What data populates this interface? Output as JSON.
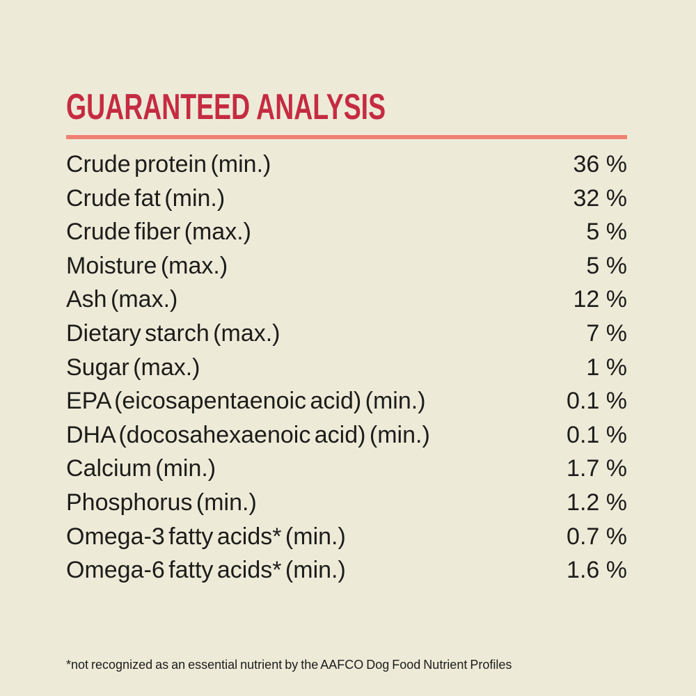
{
  "title": "GUARANTEED ANALYSIS",
  "colors": {
    "background": "#edebd8",
    "text": "#1d1c1a",
    "title_red": "#c52b42",
    "divider_salmon": "#ee8173"
  },
  "rows": [
    {
      "label": "Crude protein (min.)",
      "value": "36 %"
    },
    {
      "label": "Crude fat (min.)",
      "value": "32 %"
    },
    {
      "label": "Crude fiber (max.)",
      "value": "5 %"
    },
    {
      "label": "Moisture (max.)",
      "value": "5 %"
    },
    {
      "label": "Ash (max.)",
      "value": "12 %"
    },
    {
      "label": "Dietary starch (max.)",
      "value": "7 %"
    },
    {
      "label": "Sugar (max.)",
      "value": "1 %"
    },
    {
      "label": "EPA (eicosapentaenoic acid) (min.)",
      "value": "0.1 %"
    },
    {
      "label": "DHA (docosahexaenoic acid) (min.)",
      "value": "0.1 %"
    },
    {
      "label": "Calcium (min.)",
      "value": "1.7 %"
    },
    {
      "label": "Phosphorus (min.)",
      "value": "1.2 %"
    },
    {
      "label": "Omega-3 fatty acids* (min.)",
      "value": "0.7 %"
    },
    {
      "label": "Omega-6 fatty acids* (min.)",
      "value": "1.6 %"
    }
  ],
  "footnote": "*not recognized as an essential nutrient by the AAFCO Dog Food Nutrient Profiles"
}
